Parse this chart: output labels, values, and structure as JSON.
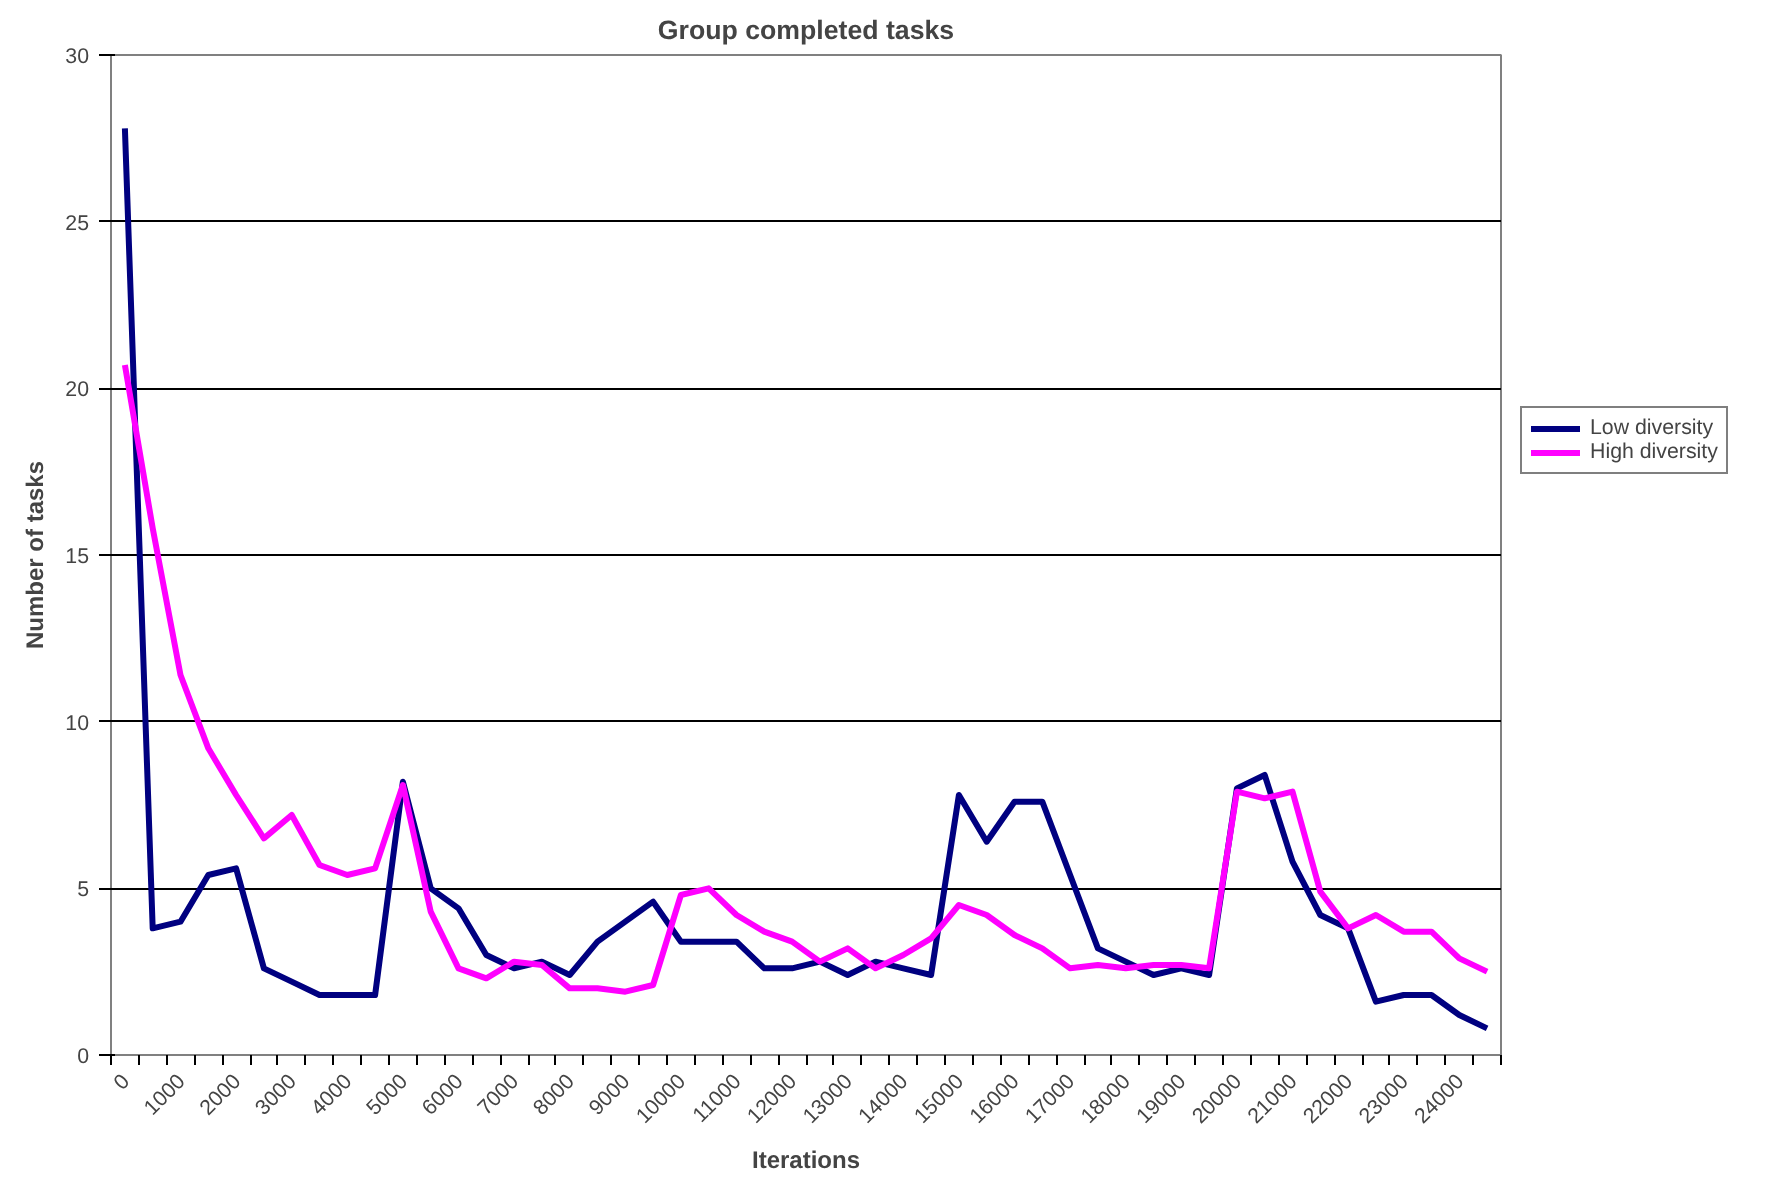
{
  "chart_data": {
    "type": "line",
    "title": "Group completed tasks",
    "xlabel": "Iterations",
    "ylabel": "Number of tasks",
    "categories": [
      "0",
      null,
      "1000",
      null,
      "2000",
      null,
      "3000",
      null,
      "4000",
      null,
      "5000",
      null,
      "6000",
      null,
      "7000",
      null,
      "8000",
      null,
      "9000",
      null,
      "10000",
      null,
      "11000",
      null,
      "12000",
      null,
      "13000",
      null,
      "14000",
      null,
      "15000",
      null,
      "16000",
      null,
      "17000",
      null,
      "18000",
      null,
      "19000",
      null,
      "20000",
      null,
      "21000",
      null,
      "22000",
      null,
      "23000",
      null,
      "24000",
      null
    ],
    "series": [
      {
        "name": "Low diversity",
        "color": "#000080",
        "values": [
          27.8,
          3.8,
          4.0,
          5.4,
          5.6,
          2.6,
          2.2,
          1.8,
          1.8,
          1.8,
          8.2,
          5.0,
          4.4,
          3.0,
          2.6,
          2.8,
          2.4,
          3.4,
          4.0,
          4.6,
          3.4,
          3.4,
          3.4,
          2.6,
          2.6,
          2.8,
          2.4,
          2.8,
          2.6,
          2.4,
          7.8,
          6.4,
          7.6,
          7.6,
          5.4,
          3.2,
          2.8,
          2.4,
          2.6,
          2.4,
          8.0,
          8.4,
          5.8,
          4.2,
          3.8,
          1.6,
          1.8,
          1.8,
          1.2,
          0.8
        ]
      },
      {
        "name": "High diversity",
        "color": "#ff00ff",
        "values": [
          20.7,
          15.8,
          11.4,
          9.2,
          7.8,
          6.5,
          7.2,
          5.7,
          5.4,
          5.6,
          8.1,
          4.3,
          2.6,
          2.3,
          2.8,
          2.7,
          2.0,
          2.0,
          1.9,
          2.1,
          4.8,
          5.0,
          4.2,
          3.7,
          3.4,
          2.8,
          3.2,
          2.6,
          3.0,
          3.5,
          4.5,
          4.2,
          3.6,
          3.2,
          2.6,
          2.7,
          2.6,
          2.7,
          2.7,
          2.6,
          7.9,
          7.7,
          7.9,
          4.9,
          3.8,
          4.2,
          3.7,
          3.7,
          2.9,
          2.5
        ]
      }
    ],
    "ylim": [
      0,
      30
    ],
    "yticks": [
      0,
      5,
      10,
      15,
      20,
      25,
      30
    ],
    "grid": "y",
    "legend": "right",
    "marker": "none",
    "line_style": "solid"
  }
}
